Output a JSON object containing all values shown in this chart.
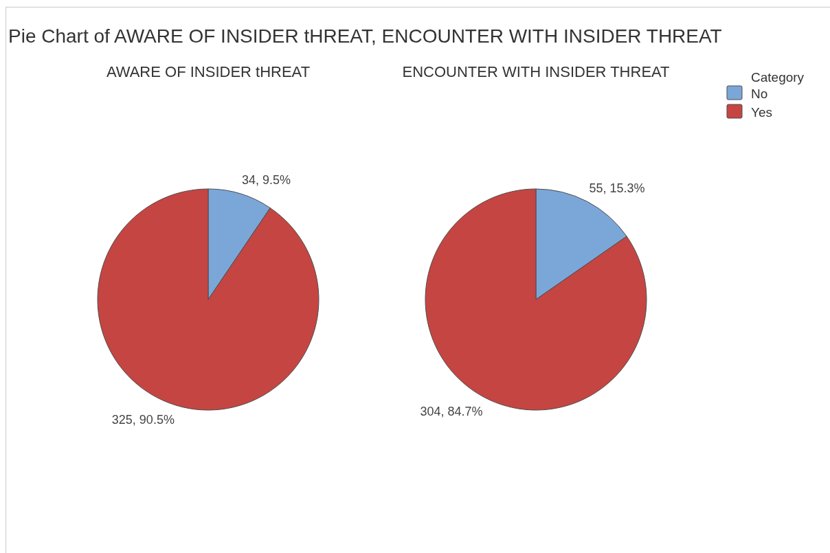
{
  "chart_data": {
    "type": "pie",
    "title": "Pie Chart of AWARE OF INSIDER tHREAT, ENCOUNTER WITH INSIDER THREAT",
    "categories": [
      "No",
      "Yes"
    ],
    "colors": [
      "#7ba6d8",
      "#c54542"
    ],
    "legend": "top right",
    "legend_title": "Category",
    "series": [
      {
        "name": "AWARE OF INSIDER tHREAT",
        "values": [
          34,
          325
        ],
        "value_labels": [
          "34, 9.5%",
          "325, 90.5%"
        ]
      },
      {
        "name": "ENCOUNTER WITH INSIDER THREAT",
        "values": [
          55,
          304
        ],
        "value_labels": [
          "55, 15.3%",
          "304, 84.7%"
        ]
      }
    ]
  }
}
